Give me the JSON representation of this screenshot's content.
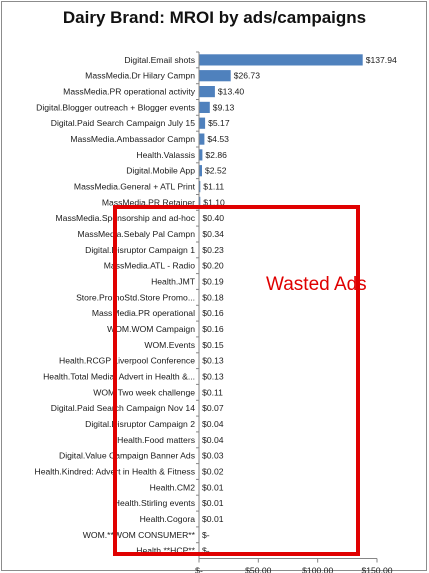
{
  "chart_data": {
    "type": "bar",
    "orientation": "horizontal",
    "title": "Dairy Brand:  MROI by ads/campaigns",
    "categories": [
      "Digital.Email  shots",
      "MassMedia.Dr Hilary Campn",
      "MassMedia.PR operational activity",
      "Digital.Blogger outreach + Blogger events",
      "Digital.Paid Search Campaign July 15",
      "MassMedia.Ambassador Campn",
      "Health.Valassis",
      "Digital.Mobile App",
      "MassMedia.General + ATL Print",
      "MassMedia.PR Retainer",
      "MassMedia.Sponsorship and ad-hoc",
      "MassMedia.Sebaly Pal Campn",
      "Digital.Disruptor Campaign 1",
      "MassMedia.ATL - Radio",
      "Health.JMT",
      "Store.PromoStd.Store Promo...",
      "MassMedia.PR operational",
      "WOM.WOM Campaign",
      "WOM.Events",
      "Health.RCGP Liverpool Conference",
      "Health.Total Media: Advert in Health &...",
      "WOM.Two week challenge",
      "Digital.Paid Search Campaign Nov 14",
      "Digital.Disruptor Campaign 2",
      "Health.Food matters",
      "Digital.Value  Campaign  Banner Ads",
      "Health.Kindred: Advert in Health & Fitness",
      "Health.CM2",
      "Health.Stirling events",
      "Health.Cogora",
      "WOM.**WOM CONSUMER**",
      "Health.**HCP**"
    ],
    "values": [
      137.94,
      26.73,
      13.4,
      9.13,
      5.17,
      4.53,
      2.86,
      2.52,
      1.11,
      1.1,
      0.4,
      0.34,
      0.23,
      0.2,
      0.19,
      0.18,
      0.16,
      0.16,
      0.15,
      0.13,
      0.13,
      0.11,
      0.07,
      0.04,
      0.04,
      0.03,
      0.02,
      0.01,
      0.01,
      0.01,
      0,
      0
    ],
    "value_labels": [
      "$137.94",
      "$26.73",
      "$13.40",
      "$9.13",
      "$5.17",
      "$4.53",
      "$2.86",
      "$2.52",
      "$1.11",
      "$1.10",
      "$0.40",
      "$0.34",
      "$0.23",
      "$0.20",
      "$0.19",
      "$0.18",
      "$0.16",
      "$0.16",
      "$0.15",
      "$0.13",
      "$0.13",
      "$0.11",
      "$0.07",
      "$0.04",
      "$0.04",
      "$0.03",
      "$0.02",
      "$0.01",
      "$0.01",
      "$0.01",
      "$-",
      "$-"
    ],
    "xlim": [
      0,
      150
    ],
    "xticks": [
      0,
      50,
      100,
      150
    ],
    "xtick_labels": [
      "$-",
      "$50.00",
      "$100.00",
      "$150.00"
    ],
    "grid": false,
    "bar_color": "#4f81bd",
    "annotation": {
      "text": "Wasted Ads",
      "color": "#e00000",
      "box_color": "#e00000"
    }
  }
}
